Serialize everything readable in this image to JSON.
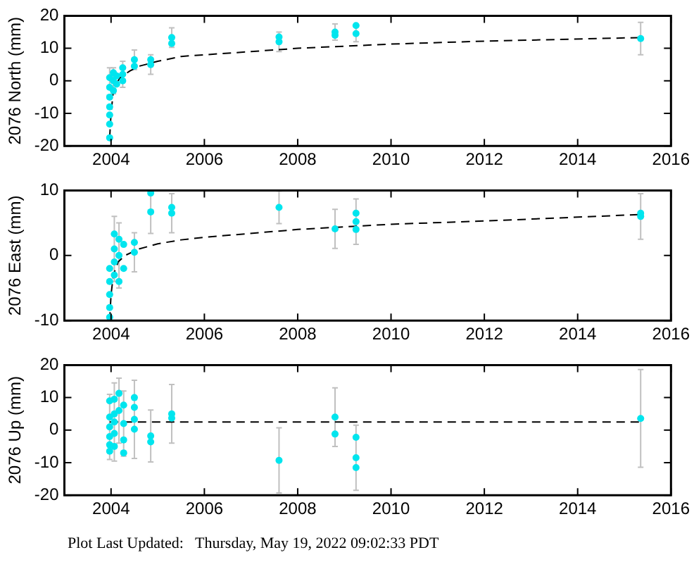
{
  "chart_data": [
    {
      "type": "scatter",
      "ylabel": "2076 North (mm)",
      "xlim": [
        2003,
        2016
      ],
      "xticks": [
        2004,
        2006,
        2008,
        2010,
        2012,
        2014,
        2016
      ],
      "ylim": [
        -20,
        20
      ],
      "yticks": [
        -20,
        -10,
        0,
        10,
        20
      ],
      "series": [
        {
          "marker": "circle",
          "color": "#00e5ee",
          "x": [
            2003.97,
            2003.97,
            2003.97,
            2003.97,
            2003.97,
            2003.97,
            2003.97,
            2004.05,
            2004.05,
            2004.05,
            2004.12,
            2004.12,
            2004.25,
            2004.25,
            2004.25,
            2004.5,
            2004.5,
            2004.85,
            2004.85,
            2005.3,
            2005.3,
            2007.6,
            2007.6,
            2008.8,
            2008.8,
            2009.25,
            2009.25,
            2015.35
          ],
          "values": [
            -17.5,
            -13.3,
            -10.5,
            -8,
            -5,
            -2,
            1,
            -3,
            0,
            2.5,
            -1,
            1.5,
            0,
            2,
            4,
            4.5,
            6.5,
            5,
            6.5,
            11.5,
            13.3,
            12,
            13.5,
            14,
            15,
            14.5,
            17,
            13
          ],
          "errors": [
            null,
            null,
            null,
            null,
            null,
            null,
            3,
            null,
            4,
            null,
            null,
            null,
            null,
            4,
            null,
            null,
            3,
            3,
            null,
            null,
            3,
            3,
            null,
            null,
            2.5,
            2.5,
            null,
            5
          ]
        },
        {
          "type": "line",
          "marker": "none",
          "line_style": "dashed",
          "color": "#000000",
          "x": [
            2003.97,
            2004.0,
            2004.05,
            2004.1,
            2004.2,
            2004.4,
            2004.6,
            2005,
            2005.5,
            2006,
            2008,
            2010,
            2012,
            2015.35
          ],
          "values": [
            -17.5,
            -10,
            -3,
            -1,
            1,
            3,
            4.5,
            6,
            7.5,
            8,
            10,
            11.3,
            12.2,
            13.3
          ]
        }
      ]
    },
    {
      "type": "scatter",
      "ylabel": "2076 East (mm)",
      "xlim": [
        2003,
        2016
      ],
      "xticks": [
        2004,
        2006,
        2008,
        2010,
        2012,
        2014,
        2016
      ],
      "ylim": [
        -10,
        10
      ],
      "yticks": [
        -10,
        0,
        10
      ],
      "series": [
        {
          "marker": "circle",
          "color": "#00e5ee",
          "x": [
            2003.97,
            2003.97,
            2003.97,
            2003.97,
            2003.97,
            2004.07,
            2004.07,
            2004.07,
            2004.07,
            2004.17,
            2004.17,
            2004.17,
            2004.27,
            2004.27,
            2004.5,
            2004.5,
            2004.85,
            2004.85,
            2005.3,
            2005.3,
            2007.6,
            2008.8,
            2009.25,
            2009.25,
            2009.25,
            2015.35,
            2015.35
          ],
          "values": [
            -9.5,
            -8,
            -6,
            -4,
            -2,
            -3,
            -1,
            1,
            3.3,
            -4,
            0,
            2.5,
            1.7,
            -2,
            0.5,
            2,
            6.7,
            9.6,
            6.5,
            7.4,
            7.4,
            4.1,
            4,
            5.2,
            6.5,
            6,
            6.5
          ],
          "errors": [
            null,
            null,
            null,
            null,
            null,
            null,
            null,
            5,
            null,
            null,
            5,
            null,
            null,
            null,
            3,
            null,
            3.3,
            null,
            3,
            null,
            2.5,
            3,
            null,
            3.5,
            null,
            3.5,
            null
          ]
        },
        {
          "type": "line",
          "marker": "none",
          "line_style": "dashed",
          "color": "#000000",
          "x": [
            2003.97,
            2004.0,
            2004.05,
            2004.15,
            2004.3,
            2004.6,
            2005,
            2005.5,
            2006,
            2008,
            2010,
            2012,
            2015.35
          ],
          "values": [
            -10,
            -6,
            -3,
            -1,
            0,
            1,
            1.8,
            2.4,
            2.8,
            4,
            4.8,
            5.3,
            6.3
          ]
        }
      ]
    },
    {
      "type": "scatter",
      "ylabel": "2076 Up (mm)",
      "xlim": [
        2003,
        2016
      ],
      "xticks": [
        2004,
        2006,
        2008,
        2010,
        2012,
        2014,
        2016
      ],
      "ylim": [
        -20,
        20
      ],
      "yticks": [
        -20,
        -10,
        0,
        10,
        20
      ],
      "annotations": [
        "Plot Last Updated:   Thursday, May 19, 2022 09:02:33 PDT"
      ],
      "series": [
        {
          "marker": "circle",
          "color": "#00e5ee",
          "x": [
            2003.97,
            2003.97,
            2003.97,
            2003.97,
            2003.97,
            2003.97,
            2004.07,
            2004.07,
            2004.07,
            2004.07,
            2004.07,
            2004.17,
            2004.17,
            2004.27,
            2004.27,
            2004.27,
            2004.27,
            2004.5,
            2004.5,
            2004.5,
            2004.5,
            2004.85,
            2004.85,
            2005.3,
            2005.3,
            2007.6,
            2008.8,
            2008.8,
            2009.25,
            2009.25,
            2009.25,
            2015.35
          ],
          "values": [
            9,
            4,
            1,
            -2,
            -4.5,
            -6.5,
            9.5,
            5,
            2.5,
            -1,
            -5,
            11.3,
            6,
            7.7,
            2,
            -3,
            -7,
            10,
            7,
            3.3,
            0.3,
            -1.8,
            -3.6,
            5,
            3.7,
            -9.3,
            4,
            -1.2,
            -2.2,
            -8.5,
            -11.5,
            3.6
          ],
          "errors": [
            null,
            null,
            10,
            null,
            null,
            null,
            null,
            null,
            12,
            null,
            null,
            null,
            10,
            null,
            10,
            null,
            null,
            null,
            null,
            12,
            null,
            8,
            null,
            9,
            null,
            10,
            9,
            null,
            null,
            10,
            null,
            15
          ]
        },
        {
          "type": "line",
          "marker": "none",
          "line_style": "dashed",
          "color": "#000000",
          "x": [
            2003.97,
            2015.35
          ],
          "values": [
            2.5,
            2.5
          ]
        }
      ]
    }
  ]
}
